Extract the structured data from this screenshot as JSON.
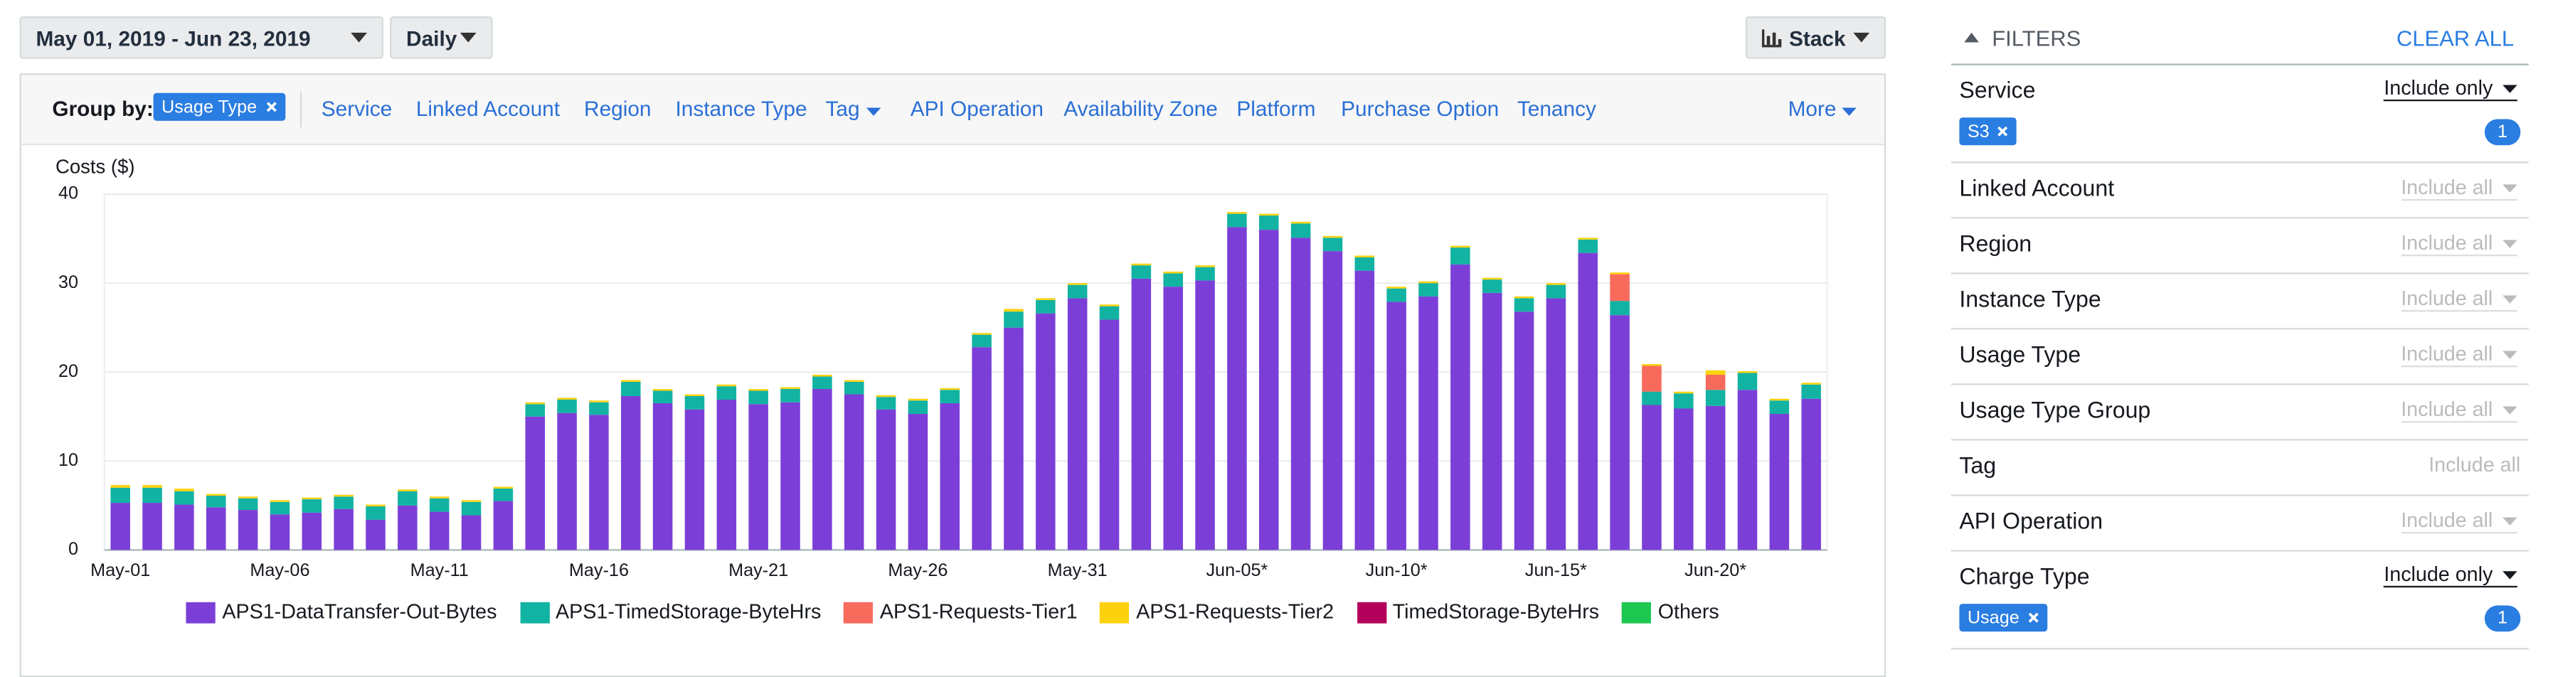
{
  "toolbar": {
    "date_range": "May 01, 2019 - Jun 23, 2019",
    "granularity": "Daily",
    "chart_style": "Stack"
  },
  "group_by": {
    "label": "Group by:",
    "selected": "Usage Type",
    "options": [
      "Service",
      "Linked Account",
      "Region",
      "Instance Type",
      "Tag",
      "API Operation",
      "Availability Zone",
      "Platform",
      "Purchase Option",
      "Tenancy"
    ],
    "more": "More"
  },
  "filters": {
    "title": "FILTERS",
    "clear": "CLEAR ALL",
    "items": [
      {
        "name": "Service",
        "mode": "Include only",
        "chips": [
          "S3"
        ],
        "count": 1
      },
      {
        "name": "Linked Account",
        "mode": "Include all"
      },
      {
        "name": "Region",
        "mode": "Include all"
      },
      {
        "name": "Instance Type",
        "mode": "Include all"
      },
      {
        "name": "Usage Type",
        "mode": "Include all"
      },
      {
        "name": "Usage Type Group",
        "mode": "Include all"
      },
      {
        "name": "Tag",
        "mode": "Include all"
      },
      {
        "name": "API Operation",
        "mode": "Include all"
      },
      {
        "name": "Charge Type",
        "mode": "Include only",
        "chips": [
          "Usage"
        ],
        "count": 1
      }
    ]
  },
  "chart_data": {
    "type": "stacked_bar",
    "y_label": "Costs ($)",
    "categories": [
      "May-01",
      null,
      null,
      null,
      null,
      "May-06",
      null,
      null,
      null,
      null,
      "May-11",
      null,
      null,
      null,
      null,
      "May-16",
      null,
      null,
      null,
      null,
      "May-21",
      null,
      null,
      null,
      null,
      "May-26",
      null,
      null,
      null,
      null,
      "May-31",
      null,
      null,
      null,
      null,
      "Jun-05*",
      null,
      null,
      null,
      null,
      "Jun-10*",
      null,
      null,
      null,
      null,
      "Jun-15*",
      null,
      null,
      null,
      null,
      "Jun-20*",
      null,
      null,
      null
    ],
    "ylim": [
      0,
      40
    ],
    "yticks": [
      0,
      10,
      20,
      30,
      40
    ],
    "grid": true,
    "series": [
      {
        "name": "APS1-DataTransfer-Out-Bytes",
        "color": "#7b3fd8",
        "values": [
          5.3,
          5.3,
          5.1,
          4.8,
          4.5,
          4.0,
          4.2,
          4.6,
          3.4,
          5.0,
          4.3,
          3.9,
          5.5,
          15.0,
          15.4,
          15.2,
          17.3,
          16.5,
          15.8,
          16.9,
          16.4,
          16.6,
          18.1,
          17.5,
          15.8,
          15.3,
          16.5,
          22.8,
          25.0,
          26.6,
          28.3,
          25.9,
          30.5,
          29.6,
          30.3,
          36.3,
          36.0,
          35.1,
          33.6,
          31.4,
          27.9,
          28.5,
          32.1,
          28.9,
          26.8,
          28.3,
          33.4,
          26.4,
          16.3,
          15.9,
          16.2,
          18.0,
          15.3,
          17.0
        ]
      },
      {
        "name": "APS1-TimedStorage-ByteHrs",
        "color": "#12b3a3",
        "values": [
          1.7,
          1.7,
          1.5,
          1.3,
          1.3,
          1.4,
          1.5,
          1.4,
          1.5,
          1.6,
          1.5,
          1.5,
          1.4,
          1.4,
          1.5,
          1.4,
          1.6,
          1.4,
          1.5,
          1.5,
          1.5,
          1.5,
          1.4,
          1.4,
          1.4,
          1.5,
          1.5,
          1.4,
          1.8,
          1.5,
          1.5,
          1.5,
          1.5,
          1.5,
          1.5,
          1.5,
          1.6,
          1.6,
          1.5,
          1.5,
          1.5,
          1.5,
          1.9,
          1.5,
          1.5,
          1.5,
          1.5,
          1.6,
          1.5,
          1.7,
          1.8,
          1.9,
          1.5,
          1.6
        ]
      },
      {
        "name": "APS1-Requests-Tier1",
        "color": "#f86a5c",
        "values": [
          0,
          0,
          0,
          0,
          0,
          0,
          0,
          0,
          0,
          0,
          0,
          0,
          0,
          0,
          0,
          0,
          0,
          0,
          0,
          0,
          0,
          0,
          0,
          0,
          0,
          0,
          0,
          0,
          0,
          0,
          0,
          0,
          0,
          0,
          0,
          0,
          0,
          0,
          0,
          0,
          0,
          0,
          0,
          0,
          0,
          0,
          0,
          3.0,
          2.9,
          0,
          1.7,
          0,
          0,
          0
        ]
      },
      {
        "name": "APS1-Requests-Tier2",
        "color": "#fcd20f",
        "values": [
          0.3,
          0.3,
          0.3,
          0.2,
          0.2,
          0.2,
          0.2,
          0.2,
          0.2,
          0.2,
          0.2,
          0.2,
          0.2,
          0.2,
          0.2,
          0.2,
          0.2,
          0.2,
          0.2,
          0.2,
          0.2,
          0.2,
          0.2,
          0.2,
          0.2,
          0.2,
          0.2,
          0.2,
          0.3,
          0.2,
          0.2,
          0.2,
          0.2,
          0.2,
          0.2,
          0.2,
          0.2,
          0.2,
          0.2,
          0.2,
          0.2,
          0.2,
          0.2,
          0.2,
          0.2,
          0.2,
          0.2,
          0.2,
          0.2,
          0.2,
          0.5,
          0.2,
          0.2,
          0.2
        ]
      },
      {
        "name": "TimedStorage-ByteHrs",
        "color": "#b3005a",
        "values": [
          0,
          0,
          0,
          0,
          0,
          0,
          0,
          0,
          0,
          0,
          0,
          0,
          0,
          0,
          0,
          0,
          0,
          0,
          0,
          0,
          0,
          0,
          0,
          0,
          0,
          0,
          0,
          0,
          0,
          0,
          0,
          0,
          0,
          0,
          0,
          0,
          0,
          0,
          0,
          0,
          0,
          0,
          0,
          0,
          0,
          0,
          0,
          0,
          0,
          0,
          0,
          0,
          0,
          0
        ]
      },
      {
        "name": "Others",
        "color": "#1ec74f",
        "values": [
          0,
          0,
          0,
          0,
          0,
          0,
          0,
          0,
          0,
          0,
          0,
          0,
          0,
          0,
          0,
          0,
          0,
          0,
          0,
          0,
          0,
          0,
          0,
          0,
          0,
          0,
          0,
          0,
          0,
          0,
          0,
          0,
          0,
          0,
          0,
          0,
          0,
          0,
          0,
          0,
          0,
          0,
          0,
          0,
          0,
          0,
          0,
          0,
          0,
          0,
          0,
          0,
          0,
          0
        ]
      }
    ]
  }
}
